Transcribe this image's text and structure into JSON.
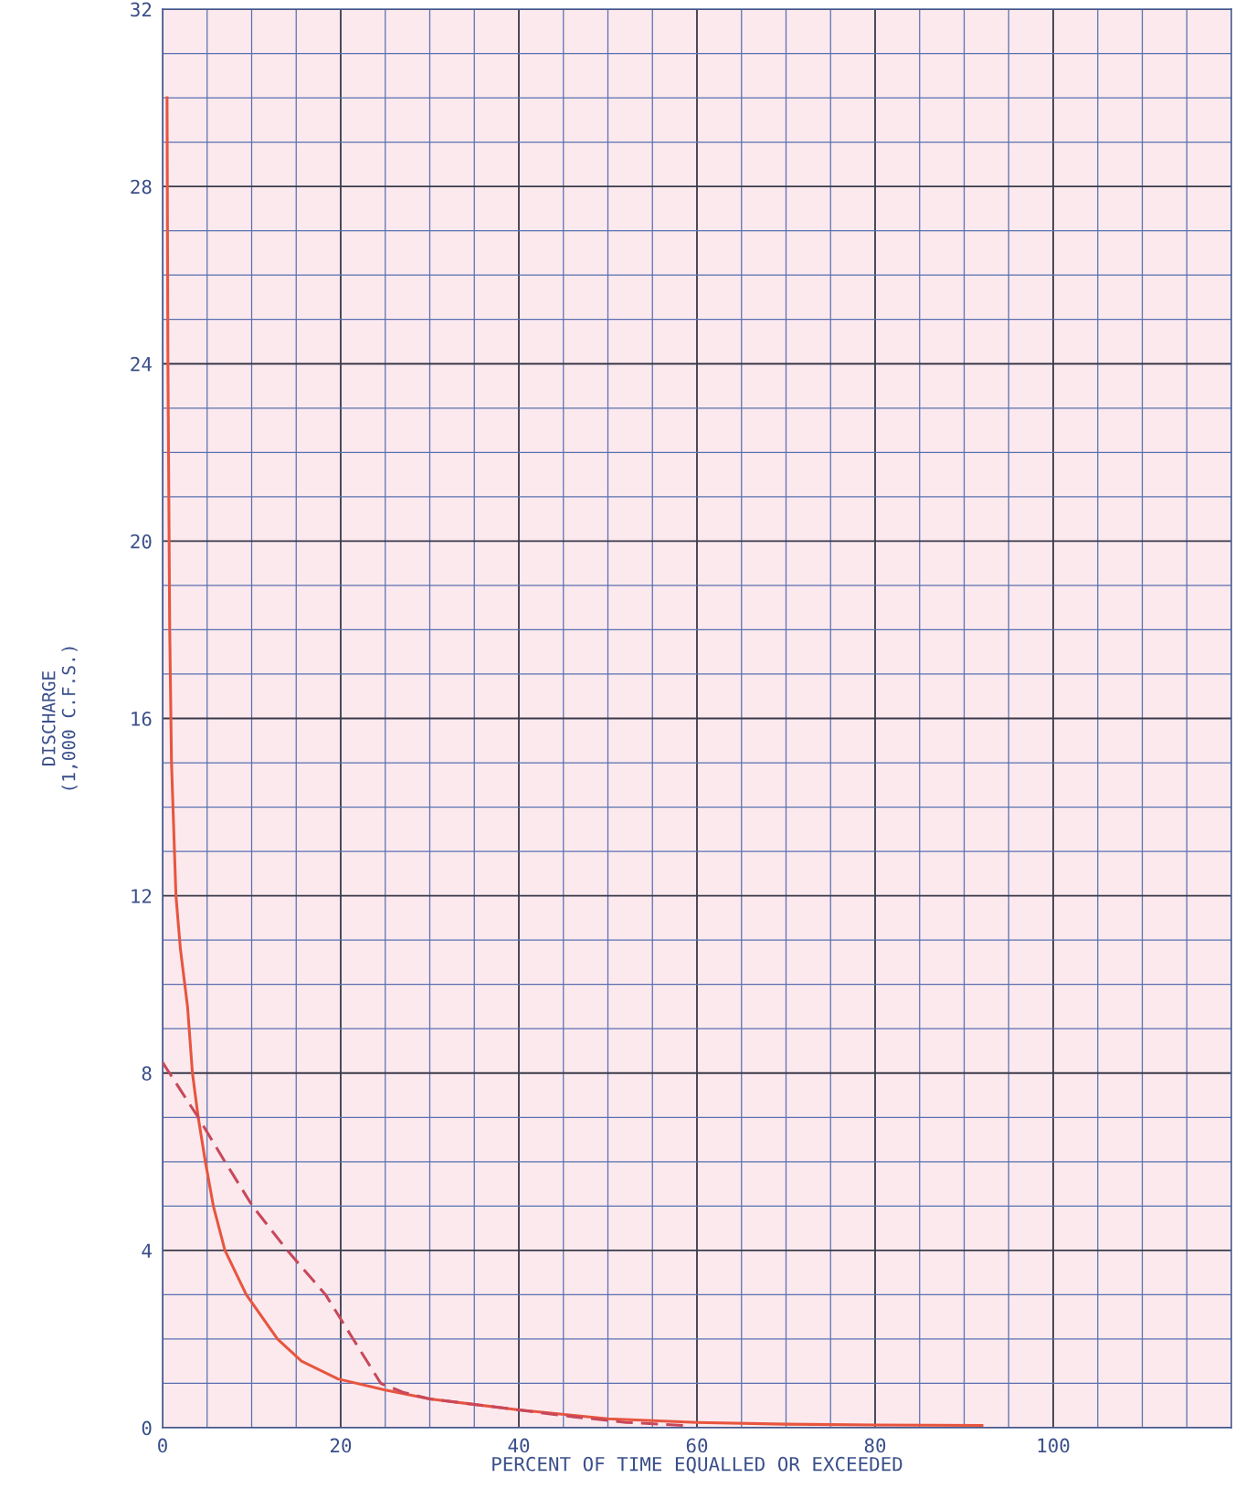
{
  "chart_data": {
    "type": "line",
    "xlabel": "PERCENT OF TIME EQUALLED OR EXCEEDED",
    "ylabel": "DISCHARGE\n(1,000 C.F.S.)",
    "xlim": [
      0,
      120
    ],
    "ylim": [
      0,
      32
    ],
    "xticks": [
      0,
      {
        "value": 5,
        "label": null
      },
      {
        "value": 10,
        "label": null
      },
      {
        "value": 15,
        "label": null
      },
      20,
      {
        "value": 25,
        "label": null
      },
      {
        "value": 30,
        "label": null
      },
      {
        "value": 35,
        "label": null
      },
      40,
      {
        "value": 45,
        "label": null
      },
      {
        "value": 50,
        "label": null
      },
      {
        "value": 55,
        "label": null
      },
      60,
      {
        "value": 65,
        "label": null
      },
      {
        "value": 70,
        "label": null
      },
      {
        "value": 75,
        "label": null
      },
      80,
      {
        "value": 85,
        "label": null
      },
      {
        "value": 90,
        "label": null
      },
      {
        "value": 95,
        "label": null
      },
      100,
      {
        "value": 105,
        "label": null
      },
      {
        "value": 110,
        "label": null
      },
      {
        "value": 115,
        "label": null
      }
    ],
    "yticks": [
      0,
      {
        "value": 1,
        "label": null
      },
      {
        "value": 2,
        "label": null
      },
      {
        "value": 3,
        "label": null
      },
      4,
      {
        "value": 5,
        "label": null
      },
      {
        "value": 6,
        "label": null
      },
      {
        "value": 7,
        "label": null
      },
      8,
      {
        "value": 9,
        "label": null
      },
      {
        "value": 10,
        "label": null
      },
      {
        "value": 11,
        "label": null
      },
      12,
      {
        "value": 13,
        "label": null
      },
      {
        "value": 14,
        "label": null
      },
      {
        "value": 15,
        "label": null
      },
      16,
      {
        "value": 17,
        "label": null
      },
      {
        "value": 18,
        "label": null
      },
      {
        "value": 19,
        "label": null
      },
      20,
      {
        "value": 21,
        "label": null
      },
      {
        "value": 22,
        "label": null
      },
      {
        "value": 23,
        "label": null
      },
      24,
      {
        "value": 25,
        "label": null
      },
      {
        "value": 26,
        "label": null
      },
      {
        "value": 27,
        "label": null
      },
      28,
      {
        "value": 29,
        "label": null
      },
      {
        "value": 30,
        "label": null
      },
      {
        "value": 31,
        "label": null
      },
      32
    ],
    "grid": true,
    "series": [
      {
        "color": "#e8553f",
        "line_style": "solid",
        "x": [
          0.5,
          0.6,
          0.8,
          1.0,
          1.5,
          2.0,
          2.8,
          3.35,
          4.0,
          4.8,
          5.7,
          7.0,
          9.4,
          12.9,
          15.6,
          19.7,
          25,
          30,
          40,
          50,
          60,
          70,
          80,
          92
        ],
        "values": [
          30,
          24,
          18,
          15,
          12,
          10.8,
          9.5,
          8,
          7,
          6,
          5,
          4,
          3,
          2,
          1.5,
          1.1,
          0.85,
          0.65,
          0.4,
          0.2,
          0.12,
          0.08,
          0.06,
          0.05
        ]
      },
      {
        "color": "#c8485a",
        "line_style": "dashed",
        "x": [
          0,
          4.0,
          7.0,
          10.1,
          14.0,
          18.3,
          21.4,
          24.5,
          27,
          30,
          40,
          46,
          52,
          58.5
        ],
        "values": [
          8.24,
          7,
          6,
          5,
          4,
          3,
          2,
          1,
          0.8,
          0.65,
          0.4,
          0.25,
          0.12,
          0.05
        ]
      }
    ]
  }
}
